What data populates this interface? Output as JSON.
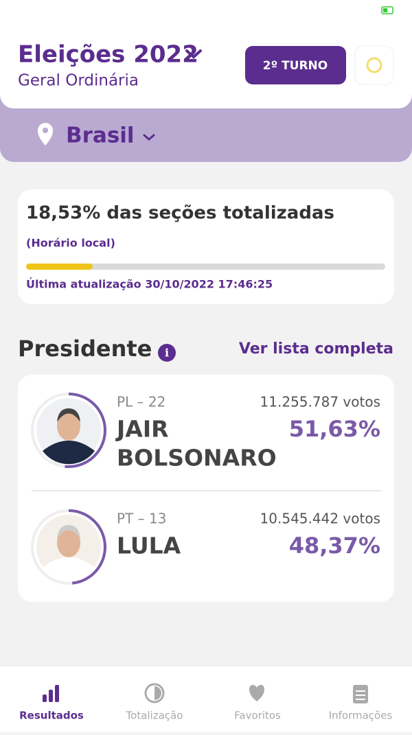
{
  "header": {
    "title": "Eleições 2022",
    "subtitle": "Geral Ordinária",
    "round_button": "2º TURNO",
    "location": "Brasil"
  },
  "progress": {
    "title": "18,53% das seções totalizadas",
    "note": "(Horário local)",
    "value": 18.53,
    "updated": "Última atualização 30/10/2022 17:46:25"
  },
  "section": {
    "title": "Presidente",
    "link": "Ver lista completa"
  },
  "candidates": [
    {
      "party": "PL – 22",
      "name_lines": [
        "JAIR",
        "BOLSONARO"
      ],
      "votes": "11.255.787 votos",
      "percent": 51.63,
      "percent_label": "51,63%"
    },
    {
      "party": "PT – 13",
      "name_lines": [
        "LULA"
      ],
      "votes": "10.545.442 votos",
      "percent": 48.37,
      "percent_label": "48,37%"
    }
  ],
  "nav": [
    "Resultados",
    "Totalização",
    "Favoritos",
    "Informações"
  ]
}
